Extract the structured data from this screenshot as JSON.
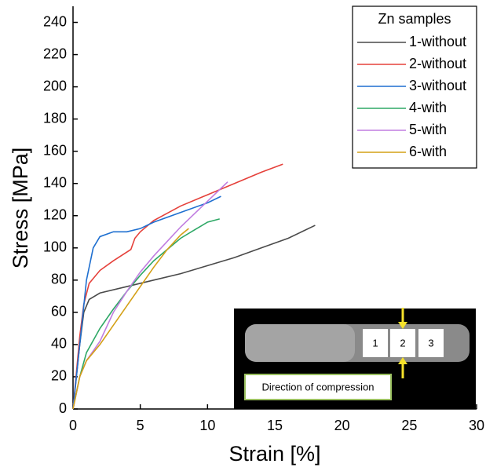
{
  "chart_data": {
    "type": "line",
    "x_label": "Strain [%]",
    "y_label": "Stress [MPa]",
    "legend_title": "Zn samples",
    "legend": "upper-right",
    "xlim": [
      0,
      30
    ],
    "xticks": [
      0,
      5,
      10,
      15,
      20,
      25,
      30
    ],
    "ylim": [
      0,
      250
    ],
    "yticks": [
      0,
      20,
      40,
      60,
      80,
      100,
      120,
      140,
      160,
      180,
      200,
      220,
      240
    ],
    "series": [
      {
        "name": "1-without",
        "color": "#4a4a4a",
        "x": [
          0,
          0.5,
          0.8,
          1.2,
          2,
          4,
          6,
          8,
          10,
          12,
          14,
          16,
          17,
          18
        ],
        "values": [
          0,
          40,
          60,
          68,
          72,
          76,
          80,
          84,
          89,
          94,
          100,
          106,
          110,
          114
        ]
      },
      {
        "name": "2-without",
        "color": "#e5403a",
        "x": [
          0,
          0.5,
          0.8,
          1.2,
          2,
          3,
          4.3,
          4.6,
          5,
          6,
          8,
          10,
          12,
          14,
          15.6
        ],
        "values": [
          0,
          45,
          65,
          78,
          86,
          92,
          99,
          106,
          110,
          117,
          126,
          133,
          140,
          147,
          152
        ]
      },
      {
        "name": "3-without",
        "color": "#1e6fd0",
        "x": [
          0,
          0.5,
          1,
          1.5,
          2,
          3,
          4,
          5,
          6,
          8,
          10,
          11
        ],
        "values": [
          0,
          40,
          80,
          100,
          107,
          110,
          110,
          112,
          116,
          122,
          128,
          132
        ]
      },
      {
        "name": "4-with",
        "color": "#2ea866",
        "x": [
          0,
          0.5,
          1,
          2,
          3,
          4,
          5,
          6,
          7,
          8,
          9,
          10,
          10.9
        ],
        "values": [
          0,
          20,
          35,
          50,
          62,
          73,
          83,
          92,
          99,
          106,
          111,
          116,
          118
        ]
      },
      {
        "name": "5-with",
        "color": "#c07de0",
        "x": [
          0,
          0.5,
          1,
          2,
          3,
          4,
          5,
          6,
          7,
          8,
          9,
          10,
          11,
          11.5
        ],
        "values": [
          0,
          20,
          30,
          42,
          60,
          73,
          85,
          95,
          104,
          113,
          121,
          129,
          137,
          141
        ]
      },
      {
        "name": "6-with",
        "color": "#d4a017",
        "x": [
          0,
          0.5,
          1,
          2,
          3,
          4,
          5,
          6,
          7,
          8,
          8.6
        ],
        "values": [
          0,
          20,
          30,
          40,
          52,
          64,
          76,
          88,
          99,
          108,
          112
        ]
      }
    ],
    "inset": {
      "labels": [
        "1",
        "2",
        "3"
      ],
      "caption": "Direction of compression"
    }
  }
}
